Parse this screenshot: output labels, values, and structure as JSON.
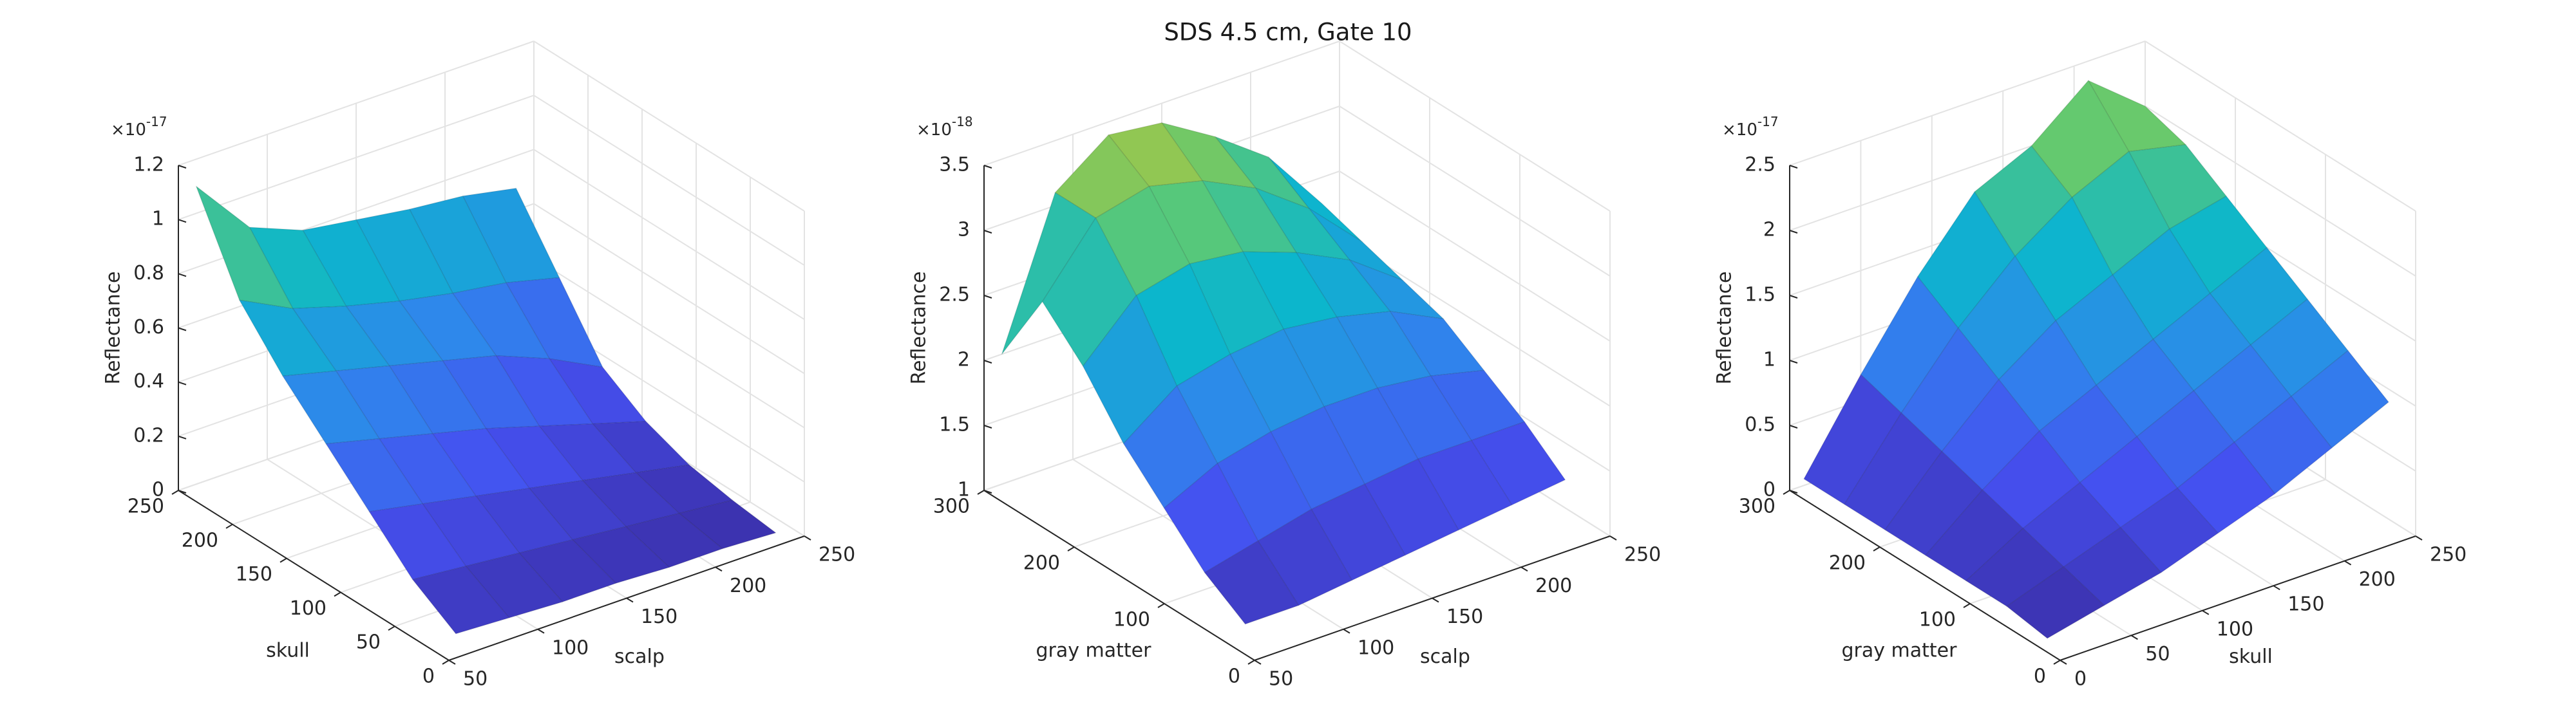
{
  "title": "SDS 4.5 cm, Gate 10",
  "chart_data": [
    {
      "type": "surface",
      "xlabel": "scalp",
      "ylabel": "skull",
      "zlabel": "Reflectance",
      "z_exponent": {
        "base": "×10",
        "power": "-17"
      },
      "x": [
        60,
        90,
        120,
        150,
        180,
        210,
        240
      ],
      "y": [
        10,
        50,
        90,
        130,
        170,
        210,
        250
      ],
      "z": [
        [
          0.05,
          0.04,
          0.03,
          0.03,
          0.02,
          0.02,
          0.01
        ],
        [
          0.15,
          0.13,
          0.11,
          0.09,
          0.07,
          0.05,
          0.03
        ],
        [
          0.3,
          0.26,
          0.22,
          0.18,
          0.14,
          0.1,
          0.06
        ],
        [
          0.45,
          0.4,
          0.35,
          0.3,
          0.24,
          0.18,
          0.12
        ],
        [
          0.6,
          0.55,
          0.5,
          0.45,
          0.4,
          0.32,
          0.22
        ],
        [
          0.78,
          0.68,
          0.62,
          0.57,
          0.53,
          0.5,
          0.45
        ],
        [
          1.1,
          0.88,
          0.8,
          0.77,
          0.74,
          0.72,
          0.68
        ]
      ],
      "xlim": [
        50,
        250
      ],
      "xticks": [
        50,
        100,
        150,
        200,
        250
      ],
      "ylim": [
        0,
        250
      ],
      "yticks": [
        0,
        50,
        100,
        150,
        200,
        250
      ],
      "zlim": [
        0,
        1.2
      ],
      "zticks": [
        0,
        0.2,
        0.4,
        0.6,
        0.8,
        1,
        1.2
      ],
      "grid": true,
      "colormap": [
        "#3b2fa8",
        "#4550f0",
        "#2f86ec",
        "#0cb6cc",
        "#5cc974",
        "#c0c536"
      ]
    },
    {
      "type": "surface",
      "xlabel": "scalp",
      "ylabel": "gray matter",
      "zlabel": "Reflectance",
      "z_exponent": {
        "base": "×10",
        "power": "-18"
      },
      "x": [
        60,
        90,
        120,
        150,
        180,
        210,
        240
      ],
      "y": [
        30,
        75,
        120,
        165,
        210,
        255,
        300
      ],
      "z": [
        [
          1.1,
          1.1,
          1.15,
          1.2,
          1.25,
          1.3,
          1.35
        ],
        [
          1.3,
          1.4,
          1.5,
          1.55,
          1.6,
          1.6,
          1.6
        ],
        [
          1.6,
          1.8,
          1.9,
          1.95,
          1.95,
          1.9,
          1.8
        ],
        [
          1.9,
          2.2,
          2.3,
          2.35,
          2.3,
          2.2,
          2.0
        ],
        [
          2.3,
          2.7,
          2.8,
          2.75,
          2.6,
          2.4,
          2.1
        ],
        [
          2.6,
          3.1,
          3.2,
          3.1,
          2.9,
          2.6,
          2.2
        ],
        [
          2.0,
          3.1,
          3.4,
          3.35,
          3.1,
          2.8,
          2.3
        ]
      ],
      "xlim": [
        50,
        250
      ],
      "xticks": [
        50,
        100,
        150,
        200,
        250
      ],
      "ylim": [
        0,
        300
      ],
      "yticks": [
        0,
        100,
        200,
        300
      ],
      "zlim": [
        1,
        3.5
      ],
      "zticks": [
        1,
        1.5,
        2,
        2.5,
        3,
        3.5
      ],
      "grid": true,
      "colormap": [
        "#3b2fa8",
        "#4550f0",
        "#2f86ec",
        "#0cb6cc",
        "#5cc974",
        "#c0c536"
      ]
    },
    {
      "type": "surface",
      "xlabel": "skull",
      "ylabel": "gray matter",
      "zlabel": "Reflectance",
      "z_exponent": {
        "base": "×10",
        "power": "-17"
      },
      "x": [
        10,
        50,
        90,
        130,
        170,
        210,
        250
      ],
      "y": [
        30,
        75,
        120,
        165,
        210,
        255,
        300
      ],
      "z": [
        [
          0.0,
          0.1,
          0.2,
          0.35,
          0.5,
          0.7,
          0.9
        ],
        [
          0.05,
          0.2,
          0.35,
          0.5,
          0.7,
          0.9,
          1.1
        ],
        [
          0.05,
          0.3,
          0.5,
          0.7,
          0.9,
          1.1,
          1.3
        ],
        [
          0.05,
          0.4,
          0.7,
          0.9,
          1.1,
          1.3,
          1.5
        ],
        [
          0.05,
          0.5,
          0.9,
          1.2,
          1.4,
          1.6,
          1.7
        ],
        [
          0.05,
          0.6,
          1.1,
          1.5,
          1.8,
          2.0,
          1.9
        ],
        [
          0.05,
          0.7,
          1.3,
          1.8,
          2.0,
          2.35,
          2.0
        ]
      ],
      "xlim": [
        0,
        250
      ],
      "xticks": [
        0,
        50,
        100,
        150,
        200,
        250
      ],
      "ylim": [
        0,
        300
      ],
      "yticks": [
        0,
        100,
        200,
        300
      ],
      "zlim": [
        0,
        2.5
      ],
      "zticks": [
        0,
        0.5,
        1,
        1.5,
        2,
        2.5
      ],
      "grid": true,
      "colormap": [
        "#3b2fa8",
        "#4550f0",
        "#2f86ec",
        "#0cb6cc",
        "#5cc974",
        "#c0c536"
      ]
    }
  ]
}
